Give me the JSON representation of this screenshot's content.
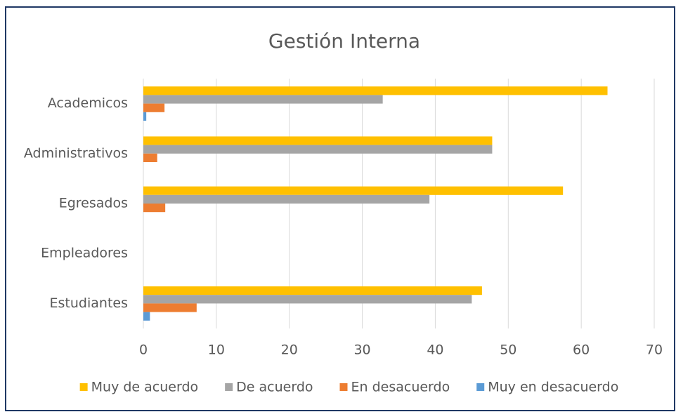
{
  "chart_data": {
    "type": "hbar",
    "title": "Gestión Interna",
    "categories": [
      "Academicos",
      "Administrativos",
      "Egresados",
      "Empleadores",
      "Estudiantes"
    ],
    "series": [
      {
        "name": "Muy de acuerdo",
        "color": "#FFC000",
        "values": [
          63.6,
          47.8,
          57.5,
          0,
          46.4
        ]
      },
      {
        "name": "De acuerdo",
        "color": "#A5A5A5",
        "values": [
          32.8,
          47.8,
          39.2,
          0,
          45.0
        ]
      },
      {
        "name": "En desacuerdo",
        "color": "#ED7D31",
        "values": [
          2.9,
          1.9,
          3.0,
          0,
          7.3
        ]
      },
      {
        "name": "Muy en desacuerdo",
        "color": "#5B9BD5",
        "values": [
          0.4,
          0,
          0,
          0,
          0.9
        ]
      }
    ],
    "xlim": [
      0,
      70
    ],
    "xticks": [
      0,
      10,
      20,
      30,
      40,
      50,
      60,
      70
    ],
    "grid": true,
    "legend": "bottom"
  }
}
